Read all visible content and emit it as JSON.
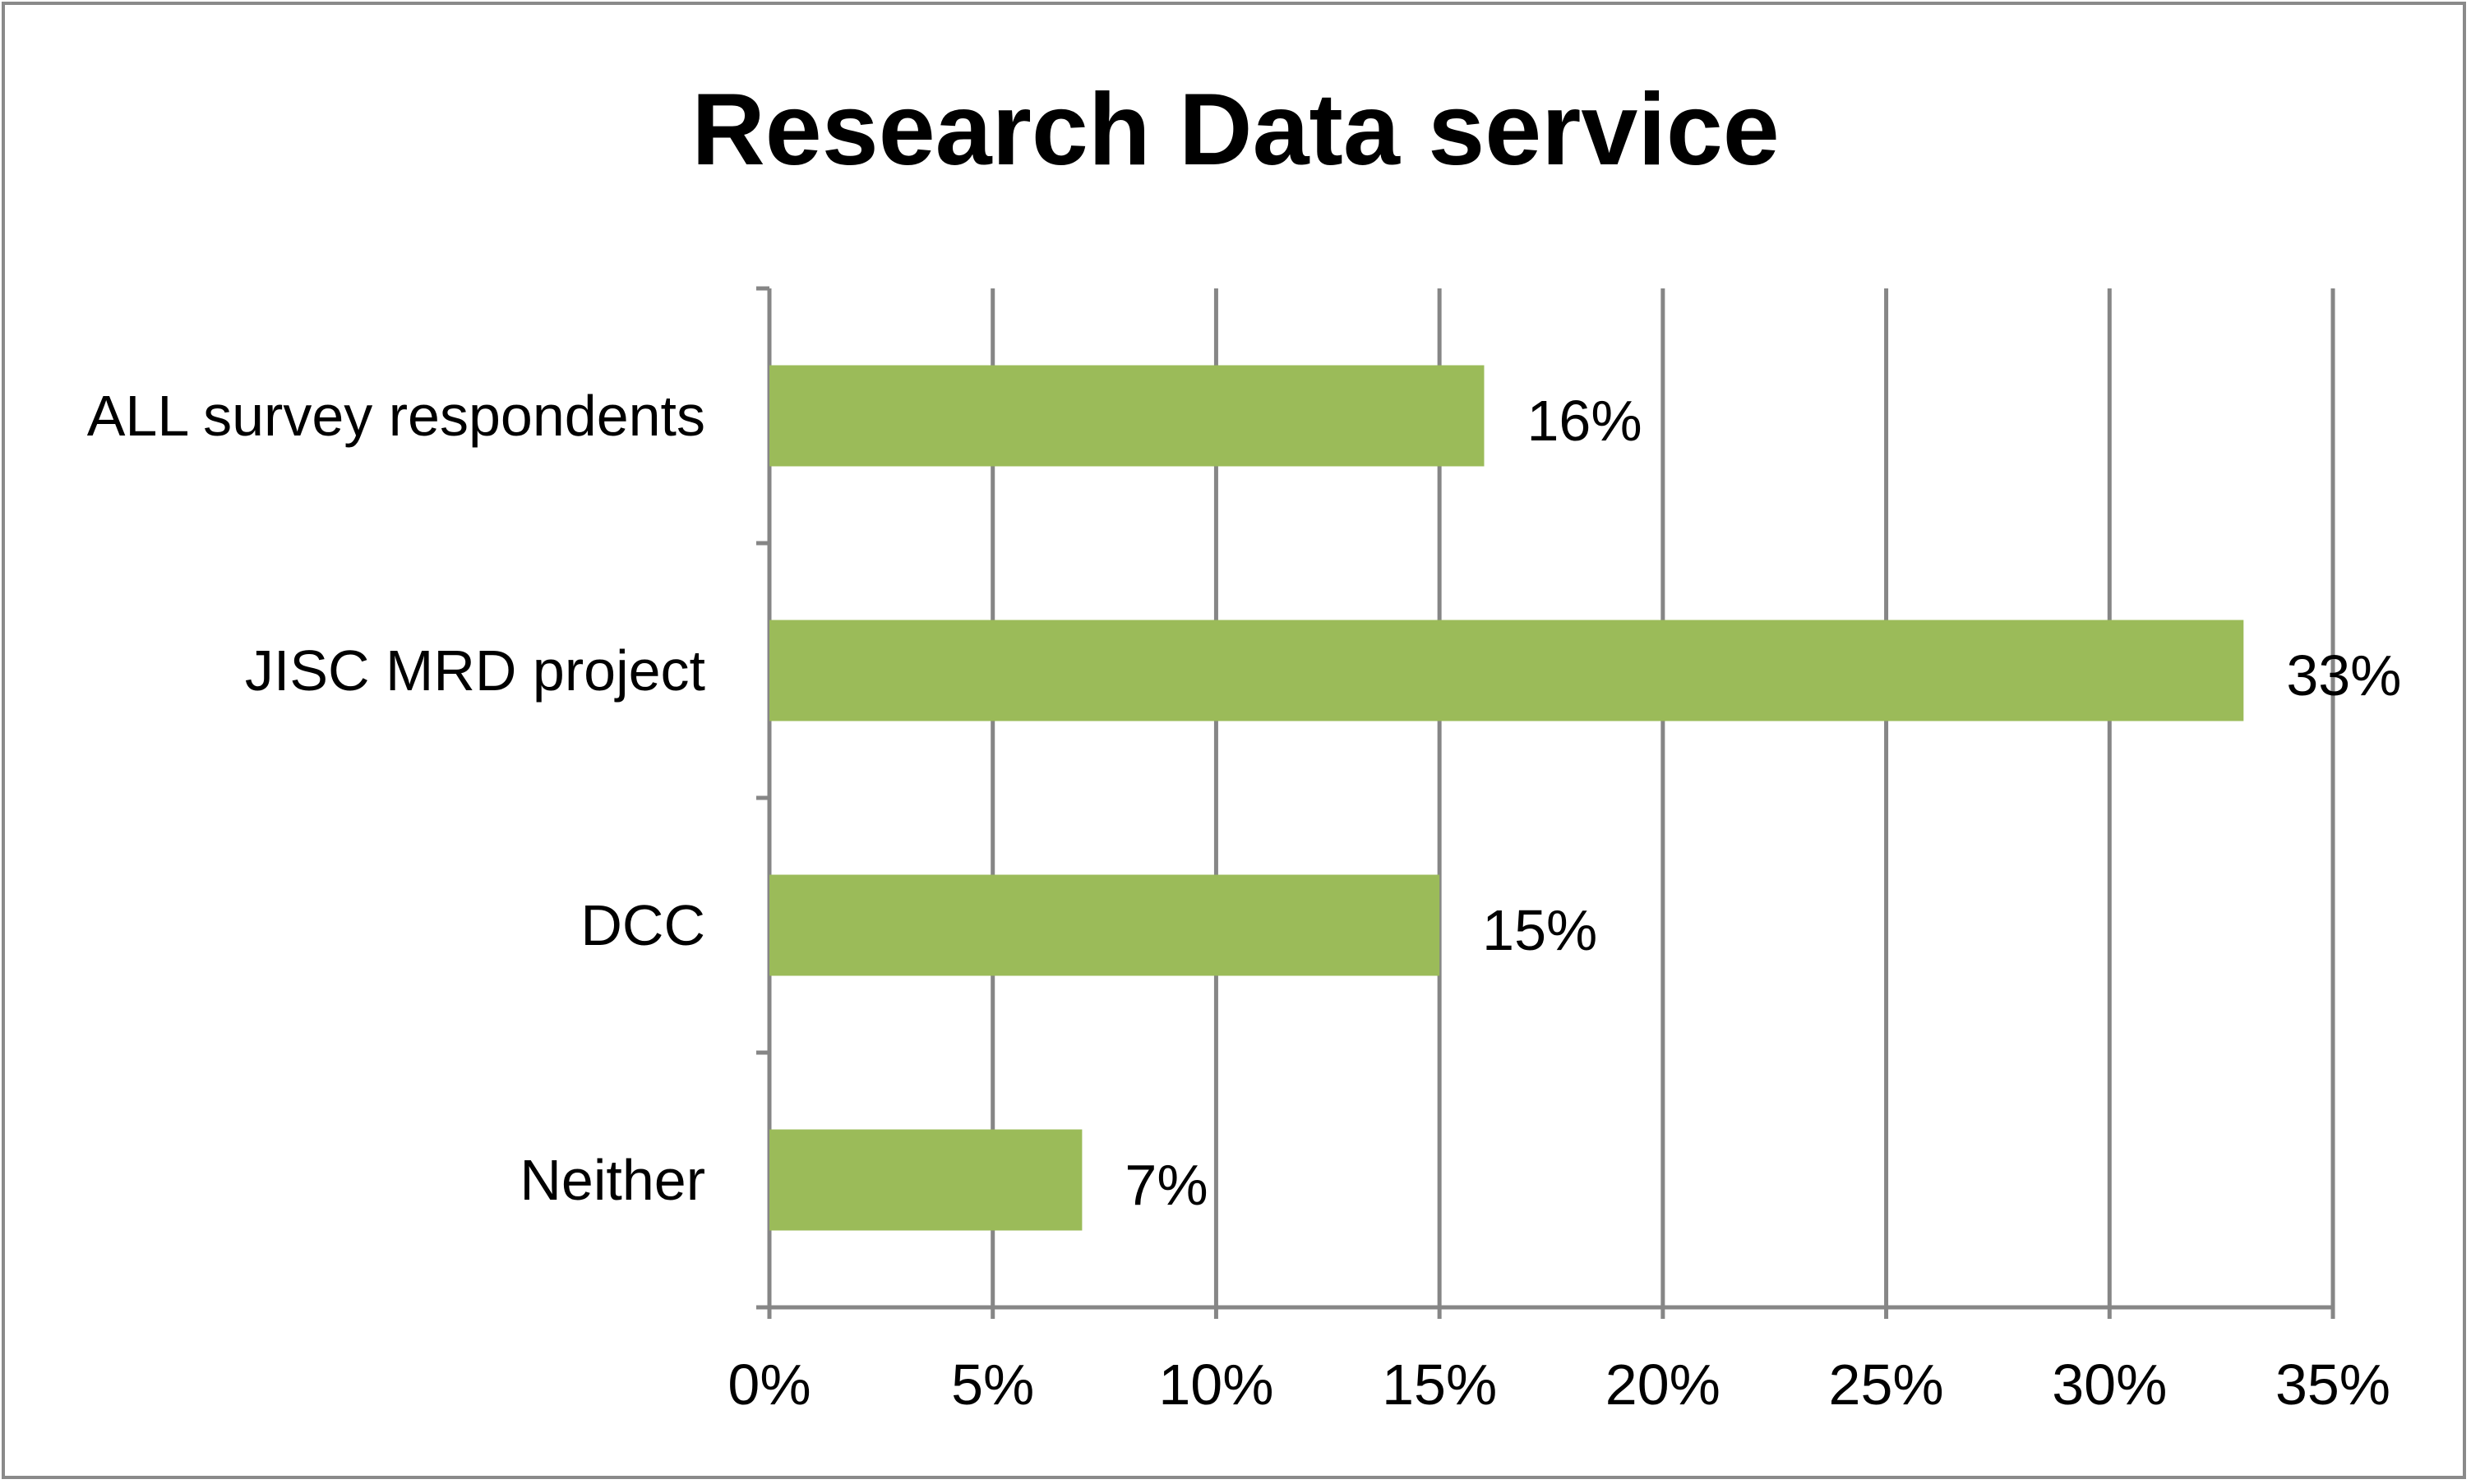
{
  "chart_data": {
    "type": "bar",
    "orientation": "horizontal",
    "title": "Research Data service",
    "categories": [
      "ALL survey respondents",
      "JISC MRD project",
      "DCC",
      "Neither"
    ],
    "values": [
      16,
      33,
      15,
      7
    ],
    "data_labels": [
      "16%",
      "33%",
      "15%",
      "7%"
    ],
    "xlim": [
      0,
      35
    ],
    "xticks": [
      0,
      5,
      10,
      15,
      20,
      25,
      30,
      35
    ],
    "xtick_labels": [
      "0%",
      "5%",
      "10%",
      "15%",
      "20%",
      "25%",
      "30%",
      "35%"
    ],
    "xlabel": "",
    "ylabel": "",
    "grid": "vertical",
    "legend": "none",
    "bar_color": "#9BBB59",
    "grid_color": "#868686"
  }
}
